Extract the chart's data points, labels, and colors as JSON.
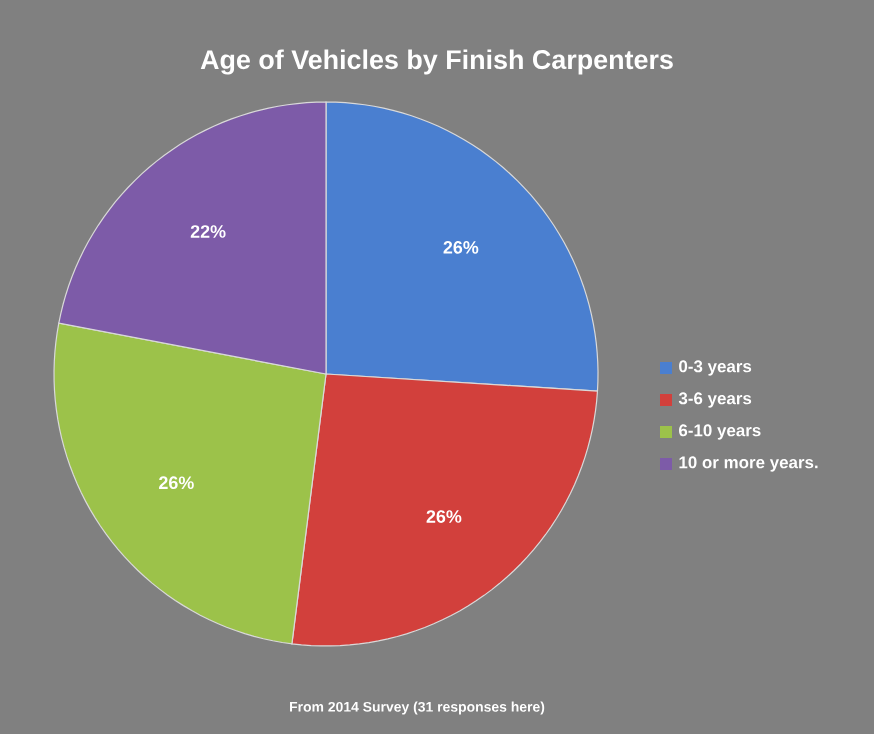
{
  "chart_data": {
    "type": "pie",
    "title": "Age of Vehicles by Finish Carpenters",
    "categories": [
      "0-3 years",
      "3-6 years",
      "6-10 years",
      "10 or more years."
    ],
    "values": [
      26,
      26,
      26,
      22
    ],
    "value_labels": [
      "26%",
      "26%",
      "26%",
      "22%"
    ],
    "colors": [
      "#4a7fd0",
      "#d2403c",
      "#9cc24a",
      "#7d5ba8"
    ],
    "legend": "right",
    "annotations": [
      "From 2014 Survey (31 responses here)"
    ]
  }
}
